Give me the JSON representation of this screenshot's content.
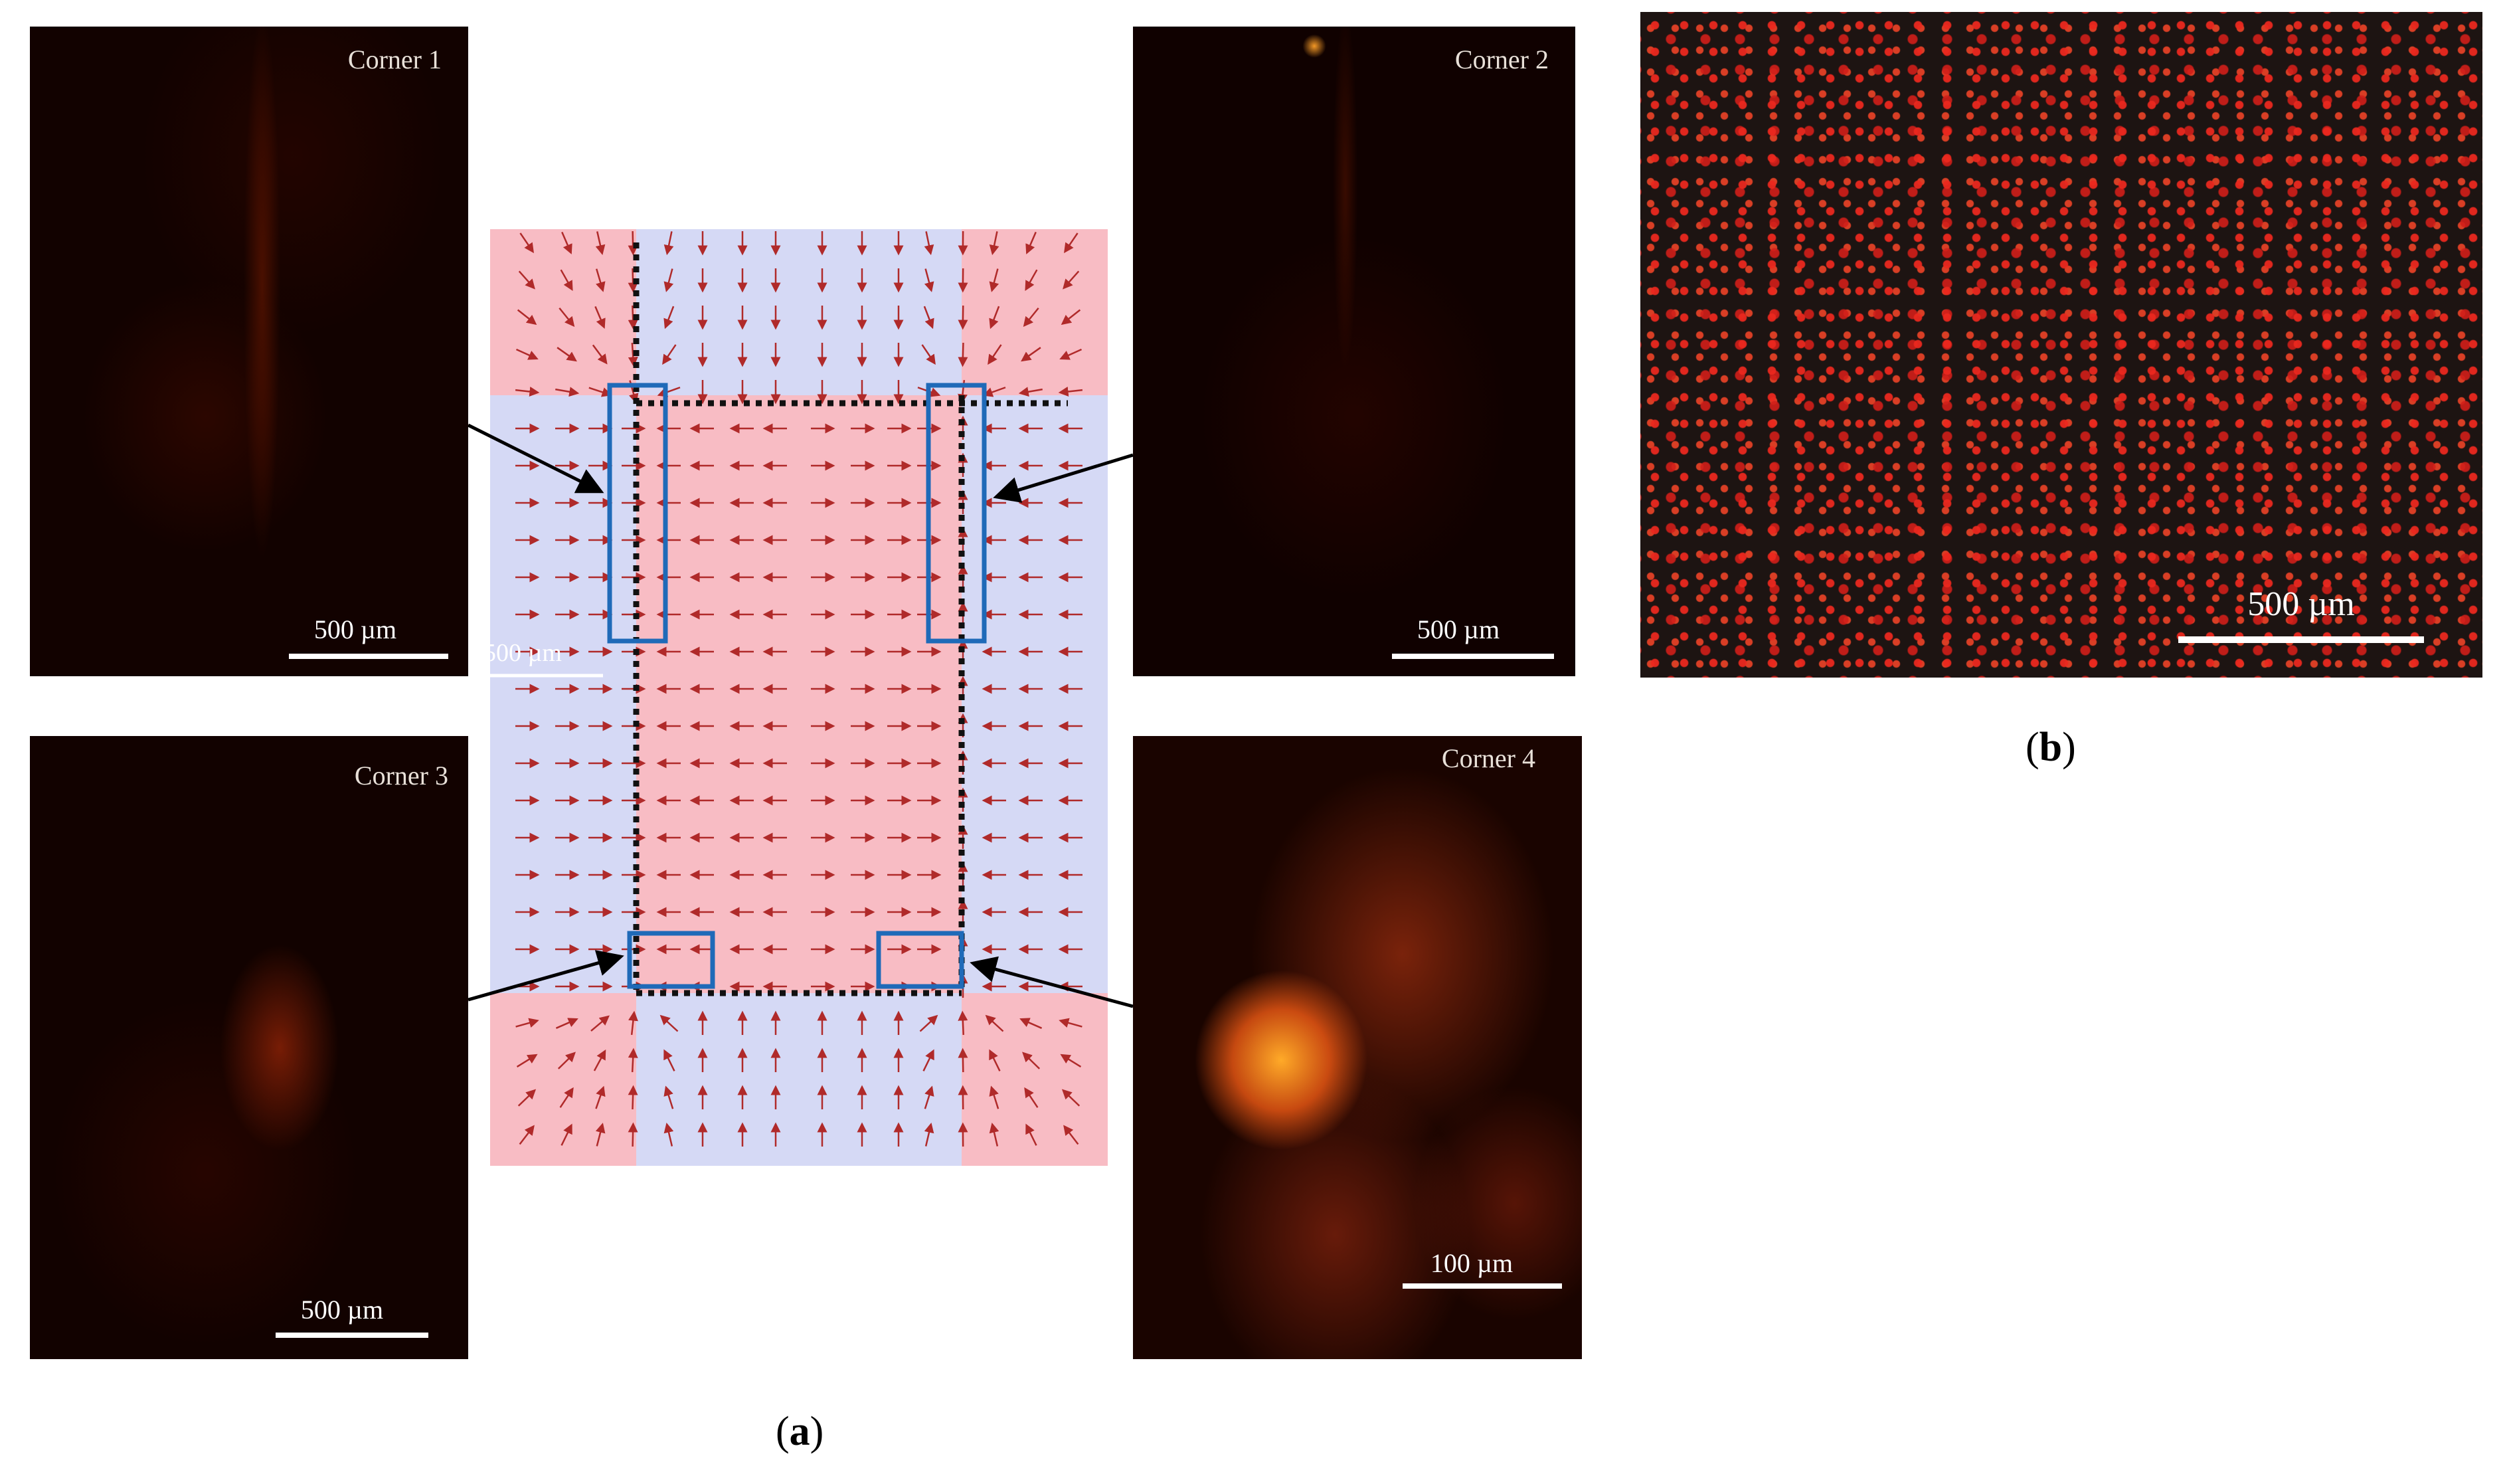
{
  "panel_a": {
    "label_open": "(",
    "label_letter": "a",
    "label_close": ")",
    "corners": [
      {
        "label": "Corner 1",
        "scale": "500 µm"
      },
      {
        "label": "Corner 2",
        "scale": "500 µm"
      },
      {
        "label": "Corner 3",
        "scale": "500 µm"
      },
      {
        "label": "Corner 4",
        "scale": "100 µm"
      }
    ],
    "vector_field_scale": "500 µm",
    "colors": {
      "field_red": "#f8bcc4",
      "field_blue": "#d5d9f5",
      "arrow": "#b02a2a",
      "box": "#1f6ab8",
      "dotted": "#111111"
    }
  },
  "panel_b": {
    "label_open": "(",
    "label_letter": "b",
    "label_close": ")",
    "scale": "500 µm"
  }
}
